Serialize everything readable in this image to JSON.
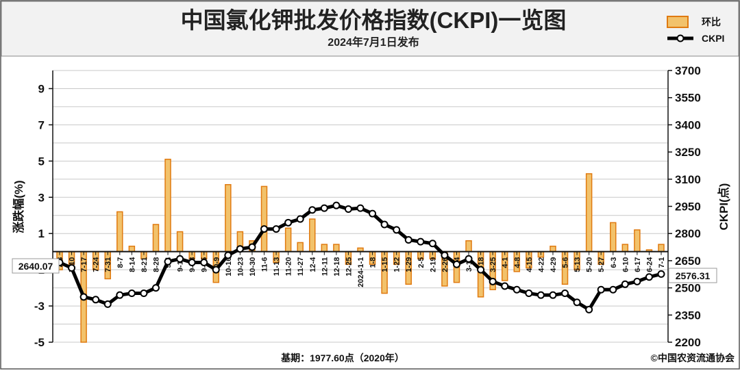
{
  "header": {
    "title": "中国氯化钾批发价格指数(CKPI)一览图",
    "subtitle": "2024年7月1日发布"
  },
  "legend": {
    "bar_label": "环比",
    "line_label": "CKPI"
  },
  "footer": {
    "base_note": "基期：1977.60点（2020年）",
    "copyright": "©中国农资流通协会"
  },
  "colors": {
    "bar_fill": "#f2c26b",
    "bar_stroke": "#e07a10",
    "line": "#000000",
    "title_band": "#f2f2f2",
    "grid": "#c8c8c8"
  },
  "chart_data": {
    "type": "bar+line",
    "categories": [
      "7-3",
      "7-10",
      "7-17",
      "7-24",
      "7-31",
      "8-7",
      "8-14",
      "8-21",
      "8-28",
      "9-4",
      "9-11",
      "9-18",
      "9-25",
      "10-9",
      "10-16",
      "10-23",
      "10-30",
      "11-6",
      "11-13",
      "11-20",
      "11-27",
      "12-4",
      "12-11",
      "12-18",
      "12-25",
      "2024-1-1",
      "1-8",
      "1-15",
      "1-22",
      "1-29",
      "2-5",
      "2-19",
      "2-26",
      "3-4",
      "3-11",
      "3-18",
      "3-25",
      "4-1",
      "4-8",
      "4-15",
      "4-22",
      "4-29",
      "5-6",
      "5-13",
      "5-20",
      "5-27",
      "6-3",
      "6-10",
      "6-17",
      "6-24",
      "7-1"
    ],
    "series": [
      {
        "name": "环比",
        "axis": "left",
        "values": [
          -1.0,
          -0.7,
          -5.0,
          -1.0,
          -1.5,
          2.2,
          0.3,
          -0.4,
          1.5,
          5.1,
          1.1,
          -0.4,
          -0.4,
          -1.7,
          3.7,
          1.1,
          0.6,
          3.6,
          -0.6,
          1.3,
          0.5,
          1.8,
          0.4,
          0.4,
          -0.7,
          0.2,
          -0.7,
          -2.3,
          -0.7,
          -1.8,
          -0.4,
          -0.4,
          -1.9,
          -1.7,
          0.6,
          -2.5,
          -2.1,
          -1.6,
          -1.1,
          -0.9,
          -0.3,
          0.3,
          -1.8,
          -1.0,
          4.3,
          -0.7,
          1.6,
          0.4,
          1.2,
          0.1,
          0.4
        ]
      },
      {
        "name": "CKPI",
        "axis": "right",
        "values": [
          2640.07,
          2610,
          2450,
          2435,
          2410,
          2460,
          2470,
          2470,
          2500,
          2645,
          2660,
          2640,
          2640,
          2600,
          2680,
          2715,
          2725,
          2825,
          2825,
          2860,
          2880,
          2930,
          2940,
          2955,
          2935,
          2940,
          2910,
          2850,
          2820,
          2765,
          2755,
          2745,
          2680,
          2630,
          2660,
          2600,
          2535,
          2510,
          2490,
          2470,
          2460,
          2460,
          2470,
          2420,
          2380,
          2490,
          2490,
          2520,
          2535,
          2560,
          2576.31
        ]
      }
    ],
    "left_axis": {
      "label": "涨跌幅(%)",
      "ylim": [
        -5,
        10
      ],
      "ticks": [
        -5,
        -3,
        -1,
        1,
        3,
        5,
        7,
        9
      ]
    },
    "right_axis": {
      "label": "CKPI(点)",
      "ylim": [
        2200,
        3700
      ],
      "ticks": [
        2200,
        2350,
        2500,
        2650,
        2800,
        2950,
        3100,
        3250,
        3400,
        3550,
        3700
      ]
    },
    "annotations": {
      "first": "2640.07",
      "last": "2576.31"
    },
    "grid": true,
    "legend_position": "top-right"
  }
}
